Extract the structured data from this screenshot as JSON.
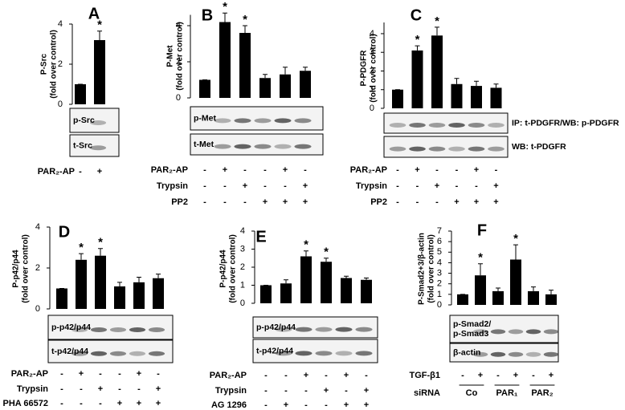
{
  "chart_data": [
    {
      "type": "bar",
      "panel": "A",
      "ylabel": [
        "P-Src",
        "(fold over control)"
      ],
      "categories": [
        null,
        null
      ],
      "values": [
        1,
        3.2
      ],
      "errors": [
        0,
        0.45
      ],
      "significance": [
        null,
        "*"
      ],
      "color": "#000000",
      "ylim": [
        0,
        4
      ],
      "yticks": [
        0,
        2,
        4
      ],
      "blots": [
        [
          "p-Src"
        ],
        [
          "t-Src"
        ]
      ],
      "rows": [
        {
          "label": "PAR₂-AP",
          "signs": [
            "-",
            "+"
          ]
        }
      ]
    },
    {
      "type": "bar",
      "panel": "B",
      "ylabel": [
        "P-Met",
        "(fold over control)"
      ],
      "categories": [
        null,
        null,
        null,
        null,
        null,
        null
      ],
      "values": [
        1,
        4.2,
        3.6,
        1.1,
        1.3,
        1.5
      ],
      "errors": [
        0,
        0.5,
        0.4,
        0.2,
        0.4,
        0.2
      ],
      "significance": [
        null,
        "*",
        "*",
        null,
        null,
        null
      ],
      "color": "#000000",
      "ylim": [
        0,
        4.6
      ],
      "yticks": [
        0,
        2,
        4
      ],
      "blots": [
        [
          "p-Met"
        ],
        [
          "t-Met"
        ]
      ],
      "rows": [
        {
          "label": "PAR₂-AP",
          "signs": [
            "-",
            "+",
            "-",
            "-",
            "+",
            "-"
          ]
        },
        {
          "label": "Trypsin",
          "signs": [
            "-",
            "-",
            "+",
            "-",
            "-",
            "+"
          ]
        },
        {
          "label": "PP2",
          "signs": [
            "-",
            "-",
            "-",
            "+",
            "+",
            "+"
          ]
        }
      ]
    },
    {
      "type": "bar",
      "panel": "C",
      "ylabel": [
        "P-PDGFR",
        "(fold over control)"
      ],
      "categories": [
        null,
        null,
        null,
        null,
        null,
        null
      ],
      "values": [
        1,
        3.1,
        3.9,
        1.3,
        1.2,
        1.1
      ],
      "errors": [
        0,
        0.25,
        0.45,
        0.3,
        0.25,
        0.2
      ],
      "significance": [
        null,
        "*",
        "*",
        null,
        null,
        null
      ],
      "color": "#000000",
      "ylim": [
        0,
        4.6
      ],
      "yticks": [
        0,
        1,
        2,
        3,
        4
      ],
      "blots": [
        [
          "IP: t-PDGFR/WB: p-PDGFR"
        ],
        [
          "WB: t-PDGFR"
        ]
      ],
      "rows": [
        {
          "label": "PAR₂-AP",
          "signs": [
            "-",
            "+",
            "-",
            "-",
            "+",
            "-"
          ]
        },
        {
          "label": "Trypsin",
          "signs": [
            "-",
            "-",
            "+",
            "-",
            "-",
            "+"
          ]
        },
        {
          "label": "PP2",
          "signs": [
            "-",
            "-",
            "-",
            "+",
            "+",
            "+"
          ]
        }
      ]
    },
    {
      "type": "bar",
      "panel": "D",
      "ylabel": [
        "P-p42/p44",
        "(fold over control)"
      ],
      "categories": [
        null,
        null,
        null,
        null,
        null,
        null
      ],
      "values": [
        1,
        2.4,
        2.6,
        1.1,
        1.3,
        1.5
      ],
      "errors": [
        0,
        0.3,
        0.35,
        0.2,
        0.25,
        0.2
      ],
      "significance": [
        null,
        "*",
        "*",
        null,
        null,
        null
      ],
      "color": "#000000",
      "ylim": [
        0,
        4
      ],
      "yticks": [
        0,
        2,
        4
      ],
      "blots": [
        [
          "p-p42/p44"
        ],
        [
          "t-p42/p44"
        ]
      ],
      "rows": [
        {
          "label": "PAR₂-AP",
          "signs": [
            "-",
            "+",
            "-",
            "-",
            "+",
            "-"
          ]
        },
        {
          "label": "Trypsin",
          "signs": [
            "-",
            "-",
            "+",
            "-",
            "-",
            "+"
          ]
        },
        {
          "label": "PHA 66572",
          "signs": [
            "-",
            "-",
            "-",
            "+",
            "+",
            "+"
          ]
        }
      ]
    },
    {
      "type": "bar",
      "panel": "E",
      "ylabel": [
        "P-p42/p44",
        "(fold over control)"
      ],
      "categories": [
        null,
        null,
        null,
        null,
        null,
        null
      ],
      "values": [
        1,
        1.1,
        2.6,
        2.3,
        1.4,
        1.3
      ],
      "errors": [
        0,
        0.2,
        0.3,
        0.2,
        0.1,
        0.1
      ],
      "significance": [
        null,
        null,
        "*",
        "*",
        null,
        null
      ],
      "color": "#000000",
      "ylim": [
        0,
        4
      ],
      "yticks": [
        0,
        1,
        2,
        3,
        4
      ],
      "blots": [
        [
          "p-p42/p44"
        ],
        [
          "t-p42/p44"
        ]
      ],
      "rows": [
        {
          "label": "PAR₂-AP",
          "signs": [
            "-",
            "-",
            "+",
            "-",
            "+",
            "-"
          ]
        },
        {
          "label": "Trypsin",
          "signs": [
            "-",
            "-",
            "-",
            "+",
            "-",
            "+"
          ]
        },
        {
          "label": "AG 1296",
          "signs": [
            "-",
            "+",
            "-",
            "-",
            "+",
            "+"
          ]
        }
      ]
    },
    {
      "type": "bar",
      "panel": "F",
      "ylabel": [
        "P-Smad2+3/β-actin",
        "(fold over control)"
      ],
      "categories": [
        null,
        null,
        null,
        null,
        null,
        null
      ],
      "values": [
        1,
        2.8,
        1.3,
        4.3,
        1.3,
        1.0
      ],
      "errors": [
        0,
        1.1,
        0.3,
        1.4,
        0.4,
        0.4
      ],
      "significance": [
        null,
        "*",
        null,
        "*",
        null,
        null
      ],
      "color": "#000000",
      "ylim": [
        0,
        7
      ],
      "yticks": [
        0,
        1,
        2,
        3,
        4,
        5,
        6,
        7
      ],
      "blots": [
        [
          "p-Smad2/",
          "p-Smad3"
        ],
        [
          "β-actin"
        ]
      ],
      "rows": [
        {
          "label": "TGF-β1",
          "signs": [
            "-",
            "+",
            "-",
            "+",
            "-",
            "+"
          ]
        }
      ],
      "group_row": {
        "label": "siRNA",
        "groups": [
          "Co",
          "PAR₁",
          "PAR₂"
        ]
      }
    }
  ]
}
